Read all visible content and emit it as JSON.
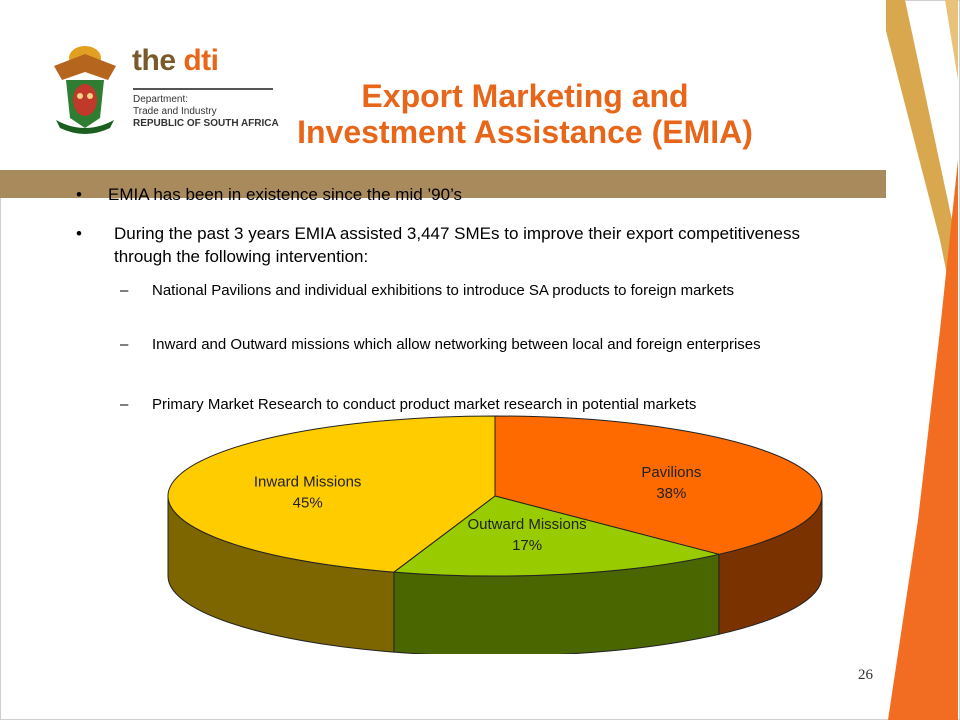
{
  "header": {
    "brand_the": "the",
    "brand_dti": "dti",
    "dept_line1": "Department:",
    "dept_line2": "Trade and Industry",
    "dept_line3": "REPUBLIC OF SOUTH AFRICA"
  },
  "slide": {
    "title_line1": "Export Marketing and",
    "title_line2": "Investment Assistance (EMIA)",
    "page_number": "26"
  },
  "bullets": [
    {
      "marker": "•",
      "text": " EMIA has been in existence since the mid ’90’s"
    },
    {
      "marker": "•",
      "text": "During the past 3 years EMIA assisted 3,447 SMEs to improve their export competitiveness through the following intervention:"
    }
  ],
  "sub_bullets": [
    {
      "marker": "–",
      "text": "National Pavilions and individual exhibitions to introduce SA products  to foreign markets"
    },
    {
      "marker": "–",
      "text": "Inward and Outward missions which allow networking between local and foreign enterprises"
    },
    {
      "marker": "–",
      "text": "Primary Market Research to conduct product market research in potential markets"
    }
  ],
  "chart_data": {
    "type": "pie",
    "title": "",
    "categories": [
      "Pavilions",
      "Outward Missions",
      "Inward Missions"
    ],
    "values": [
      38,
      17,
      45
    ],
    "value_labels": [
      "38%",
      "17%",
      "45%"
    ],
    "colors": [
      "#ff6a00",
      "#99cc00",
      "#ffcc00"
    ],
    "side_colors": [
      "#7a3300",
      "#4a6600",
      "#7d6500"
    ],
    "three_d": true,
    "legend": "none"
  },
  "colors": {
    "accent": "#e8661a",
    "brown": "#a88a5c",
    "gold_stripe": "#d9a84e",
    "orange_stripe": "#f26d21"
  }
}
